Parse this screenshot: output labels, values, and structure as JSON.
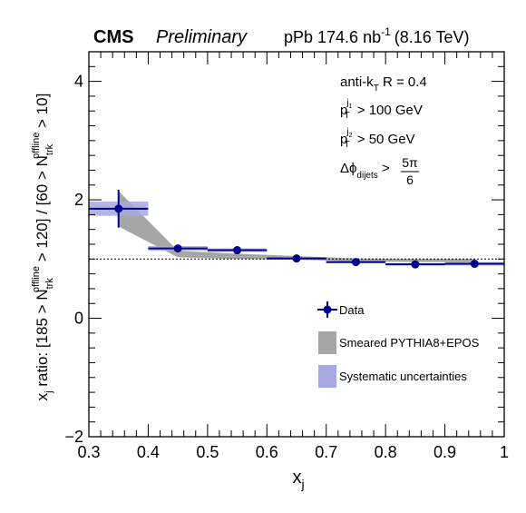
{
  "header": {
    "experiment": "CMS",
    "status": "Preliminary",
    "luminosity_prefix": "pPb 174.6 nb",
    "luminosity_exp": "-1",
    "energy": "(8.16 TeV)"
  },
  "cuts": {
    "algo": "anti-k",
    "algo_sub": "T",
    "radius": " R = 0.4",
    "pt1_sup": "j",
    "pt1_sup_idx": "1",
    "pt1_value": " > 100 GeV",
    "pt2_sup": "j",
    "pt2_sup_idx": "2",
    "pt2_value": " > 50 GeV",
    "dphi": "Δϕ",
    "dphi_sub": "dijets",
    "dphi_gt": " >",
    "dphi_num": "5π",
    "dphi_den": "6"
  },
  "axis_text": {
    "ylabel_a": "x",
    "ylabel_a_sub": "j",
    "ylabel_b": " ratio: [185 > N",
    "ylabel_b_sub": "trk",
    "ylabel_b_sup": "offline",
    "ylabel_c": " > 120] / [60 > N",
    "ylabel_c_sub": "trk",
    "ylabel_c_sup": "offline",
    "ylabel_d": " > 10]",
    "xlabel": "x",
    "xlabel_sub": "j"
  },
  "legend": {
    "data": "Data",
    "model": "Smeared PYTHIA8+EPOS",
    "syst": "Systematic uncertainties"
  },
  "colors": {
    "data": "#00008b",
    "syst": "#a8a8e0",
    "model": "#a6a6a6",
    "reference_line": "#000000"
  },
  "chart_data": {
    "type": "scatter",
    "xlim": [
      0.3,
      1.0
    ],
    "ylim": [
      -2,
      4.5
    ],
    "x_ticks": [
      0.3,
      0.4,
      0.5,
      0.6,
      0.7,
      0.8,
      0.9,
      1.0
    ],
    "x_tick_labels": [
      "0.3",
      "0.4",
      "0.5",
      "0.6",
      "0.7",
      "0.8",
      "0.9",
      "1"
    ],
    "y_ticks": [
      -2,
      0,
      2,
      4
    ],
    "y_tick_labels": [
      "−2",
      "0",
      "2",
      "4"
    ],
    "reference_line_y": 1.0,
    "series": [
      {
        "name": "Data",
        "bins": [
          [
            0.3,
            0.4
          ],
          [
            0.4,
            0.5
          ],
          [
            0.5,
            0.6
          ],
          [
            0.6,
            0.7
          ],
          [
            0.7,
            0.8
          ],
          [
            0.8,
            0.9
          ],
          [
            0.9,
            1.0
          ]
        ],
        "x": [
          0.35,
          0.45,
          0.55,
          0.65,
          0.75,
          0.85,
          0.95
        ],
        "y": [
          1.85,
          1.18,
          1.15,
          1.01,
          0.95,
          0.91,
          0.92
        ],
        "stat_err": [
          0.32,
          0.06,
          0.05,
          0.03,
          0.03,
          0.03,
          0.03
        ],
        "syst_err": [
          0.12,
          0.04,
          0.03,
          0.02,
          0.02,
          0.02,
          0.03
        ]
      },
      {
        "name": "Smeared PYTHIA8+EPOS",
        "type": "band",
        "x": [
          0.35,
          0.45,
          0.55,
          0.65,
          0.75,
          0.85,
          0.95
        ],
        "low": [
          1.55,
          1.03,
          1.0,
          0.99,
          0.96,
          0.95,
          0.95
        ],
        "high": [
          2.15,
          1.14,
          1.09,
          1.05,
          1.01,
          1.0,
          1.0
        ]
      }
    ]
  }
}
